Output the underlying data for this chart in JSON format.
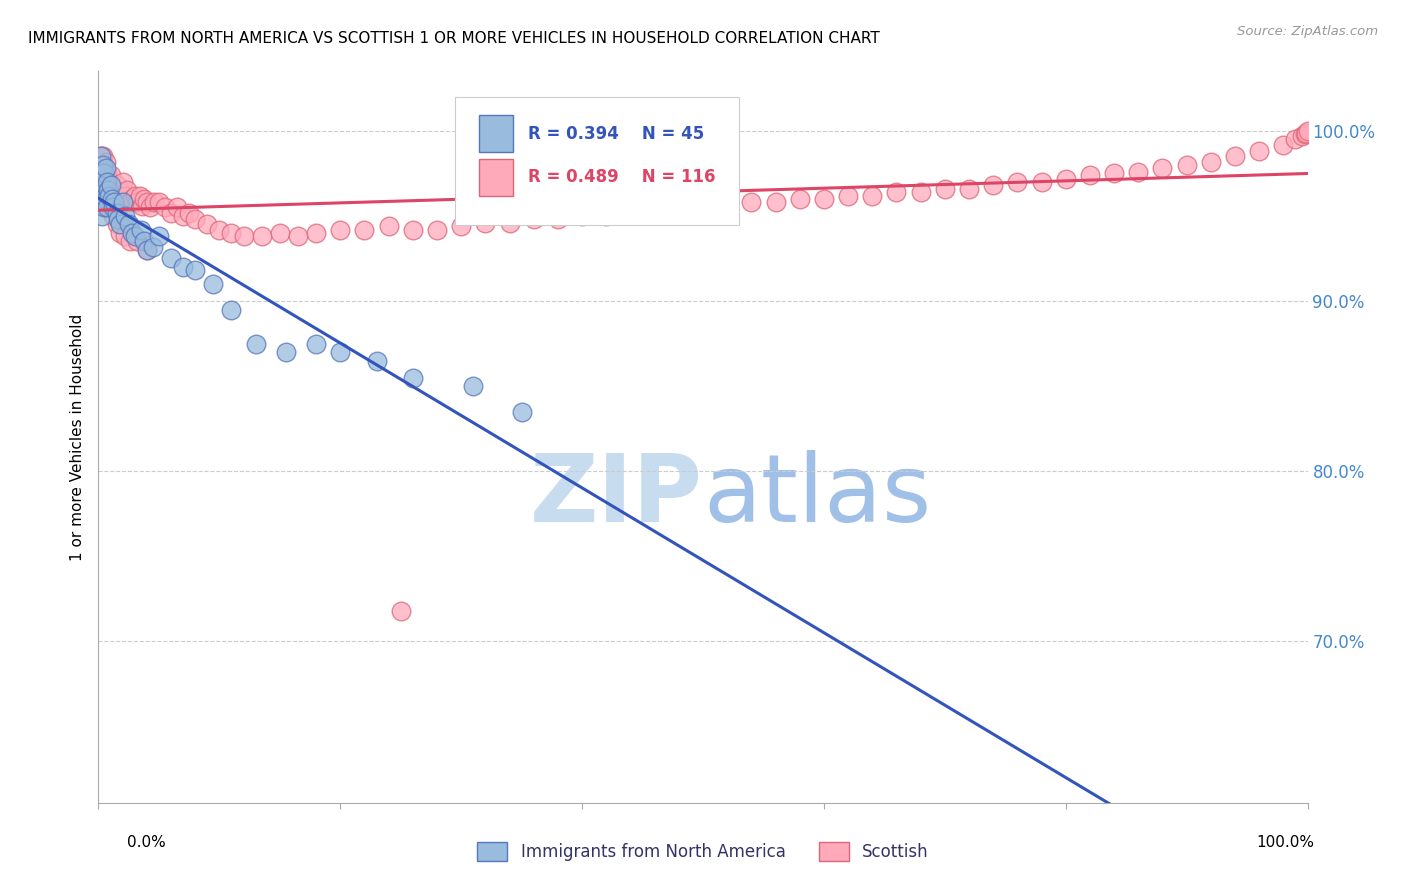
{
  "title": "IMMIGRANTS FROM NORTH AMERICA VS SCOTTISH 1 OR MORE VEHICLES IN HOUSEHOLD CORRELATION CHART",
  "source": "Source: ZipAtlas.com",
  "legend_blue_label": "Immigrants from North America",
  "legend_pink_label": "Scottish",
  "R_blue": 0.394,
  "N_blue": 45,
  "R_pink": 0.489,
  "N_pink": 116,
  "blue_scatter_face": "#99BBDD",
  "blue_scatter_edge": "#5577BB",
  "pink_scatter_face": "#FFAABB",
  "pink_scatter_edge": "#DD6677",
  "blue_line_color": "#3355BB",
  "pink_line_color": "#DD4466",
  "watermark_zip_color": "#C8DCF0",
  "watermark_atlas_color": "#A0C0E8",
  "ylabel": "1 or more Vehicles in Household",
  "ytick_color": "#4488CC",
  "legend_label_color_blue": "#3355BB",
  "legend_label_color_pink": "#DD4466",
  "xlim": [
    0.0,
    1.0
  ],
  "ylim": [
    0.605,
    1.035
  ],
  "blue_x": [
    0.001,
    0.002,
    0.002,
    0.003,
    0.003,
    0.004,
    0.004,
    0.005,
    0.005,
    0.006,
    0.006,
    0.007,
    0.007,
    0.008,
    0.009,
    0.01,
    0.011,
    0.012,
    0.013,
    0.015,
    0.016,
    0.018,
    0.02,
    0.022,
    0.025,
    0.028,
    0.03,
    0.035,
    0.038,
    0.04,
    0.045,
    0.05,
    0.06,
    0.07,
    0.08,
    0.095,
    0.11,
    0.13,
    0.155,
    0.18,
    0.2,
    0.23,
    0.26,
    0.31,
    0.35
  ],
  "blue_y": [
    0.97,
    0.985,
    0.96,
    0.975,
    0.95,
    0.98,
    0.96,
    0.975,
    0.955,
    0.978,
    0.96,
    0.97,
    0.955,
    0.965,
    0.962,
    0.968,
    0.96,
    0.955,
    0.958,
    0.952,
    0.948,
    0.945,
    0.958,
    0.95,
    0.945,
    0.94,
    0.938,
    0.942,
    0.935,
    0.93,
    0.932,
    0.938,
    0.925,
    0.92,
    0.918,
    0.91,
    0.895,
    0.875,
    0.87,
    0.875,
    0.87,
    0.865,
    0.855,
    0.85,
    0.835
  ],
  "pink_x": [
    0.001,
    0.001,
    0.002,
    0.002,
    0.003,
    0.003,
    0.004,
    0.004,
    0.005,
    0.005,
    0.006,
    0.006,
    0.007,
    0.007,
    0.008,
    0.008,
    0.009,
    0.01,
    0.011,
    0.012,
    0.013,
    0.014,
    0.015,
    0.016,
    0.017,
    0.018,
    0.019,
    0.02,
    0.022,
    0.024,
    0.026,
    0.028,
    0.03,
    0.032,
    0.034,
    0.036,
    0.038,
    0.04,
    0.043,
    0.046,
    0.05,
    0.055,
    0.06,
    0.065,
    0.07,
    0.075,
    0.08,
    0.09,
    0.1,
    0.11,
    0.12,
    0.135,
    0.15,
    0.165,
    0.18,
    0.2,
    0.22,
    0.24,
    0.26,
    0.28,
    0.3,
    0.32,
    0.34,
    0.36,
    0.38,
    0.4,
    0.42,
    0.44,
    0.46,
    0.48,
    0.5,
    0.52,
    0.54,
    0.56,
    0.58,
    0.6,
    0.62,
    0.64,
    0.66,
    0.68,
    0.7,
    0.72,
    0.74,
    0.76,
    0.78,
    0.8,
    0.82,
    0.84,
    0.86,
    0.88,
    0.9,
    0.92,
    0.94,
    0.96,
    0.98,
    0.99,
    0.995,
    0.998,
    0.999,
    1.0,
    0.002,
    0.003,
    0.004,
    0.005,
    0.006,
    0.007,
    0.008,
    0.01,
    0.012,
    0.015,
    0.018,
    0.022,
    0.026,
    0.032,
    0.04,
    0.25
  ],
  "pink_y": [
    0.978,
    0.96,
    0.985,
    0.965,
    0.98,
    0.968,
    0.985,
    0.965,
    0.978,
    0.96,
    0.982,
    0.965,
    0.975,
    0.958,
    0.972,
    0.96,
    0.968,
    0.974,
    0.966,
    0.96,
    0.964,
    0.958,
    0.968,
    0.96,
    0.962,
    0.958,
    0.964,
    0.97,
    0.962,
    0.965,
    0.958,
    0.96,
    0.962,
    0.958,
    0.962,
    0.956,
    0.96,
    0.958,
    0.955,
    0.958,
    0.958,
    0.955,
    0.952,
    0.955,
    0.95,
    0.952,
    0.948,
    0.945,
    0.942,
    0.94,
    0.938,
    0.938,
    0.94,
    0.938,
    0.94,
    0.942,
    0.942,
    0.944,
    0.942,
    0.942,
    0.944,
    0.946,
    0.946,
    0.948,
    0.948,
    0.95,
    0.95,
    0.952,
    0.952,
    0.954,
    0.955,
    0.956,
    0.958,
    0.958,
    0.96,
    0.96,
    0.962,
    0.962,
    0.964,
    0.964,
    0.966,
    0.966,
    0.968,
    0.97,
    0.97,
    0.972,
    0.974,
    0.975,
    0.976,
    0.978,
    0.98,
    0.982,
    0.985,
    0.988,
    0.992,
    0.995,
    0.997,
    0.998,
    0.999,
    1.0,
    0.975,
    0.97,
    0.968,
    0.972,
    0.968,
    0.962,
    0.958,
    0.955,
    0.95,
    0.945,
    0.94,
    0.938,
    0.935,
    0.935,
    0.93,
    0.718
  ]
}
